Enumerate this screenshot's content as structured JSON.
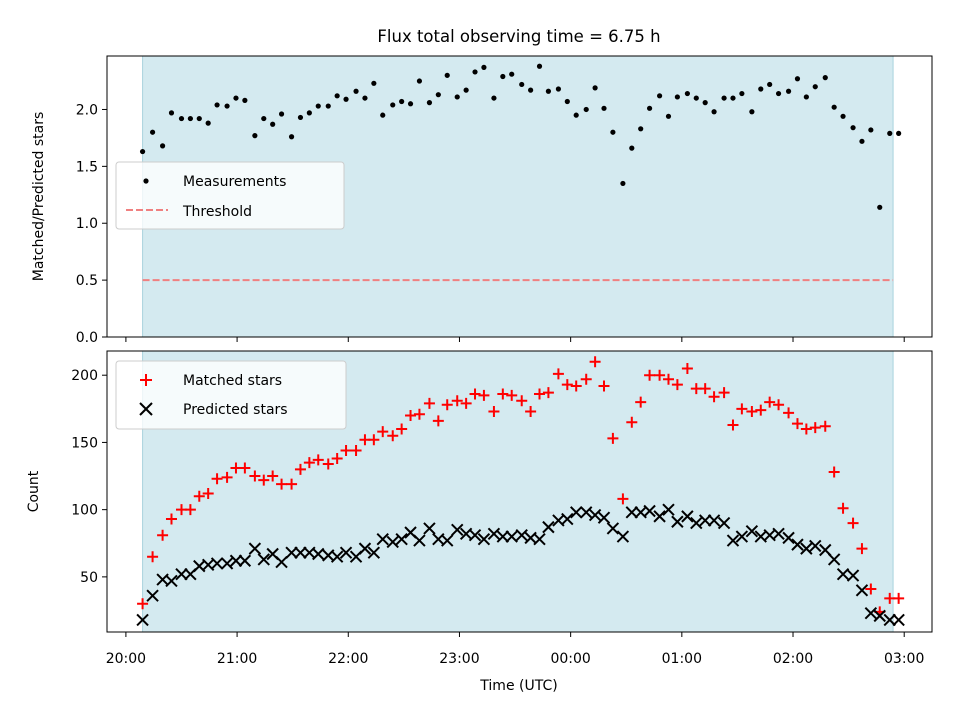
{
  "colors": {
    "band": "#d4eaf0",
    "band_edge": "#a9d3de",
    "threshold": "#f08080",
    "matched": "#ff0000",
    "predicted": "#000000",
    "measurement": "#000000"
  },
  "chart_data": {
    "title": "Flux total observing time = 6.75 h",
    "xlabel": "Time (UTC)",
    "x_unit": "hours since 20:00 UTC",
    "xlim": [
      -0.17,
      7.25
    ],
    "xticks": [
      0,
      1,
      2,
      3,
      4,
      5,
      6,
      7
    ],
    "xtick_labels": [
      "20:00",
      "21:00",
      "22:00",
      "23:00",
      "00:00",
      "01:00",
      "02:00",
      "03:00"
    ],
    "observing_window": [
      0.15,
      6.9
    ],
    "panels": [
      {
        "type": "scatter",
        "ylabel": "Matched/Predicted stars",
        "ylim": [
          0,
          2.47
        ],
        "yticks": [
          0,
          0.5,
          1.0,
          1.5,
          2.0
        ],
        "ytick_labels": [
          "0.0",
          "0.5",
          "1.0",
          "1.5",
          "2.0"
        ],
        "legend_position": "center-left",
        "series": [
          {
            "name": "Measurements",
            "marker": "dot",
            "x": [
              0.15,
              0.24,
              0.33,
              0.41,
              0.5,
              0.58,
              0.66,
              0.74,
              0.82,
              0.91,
              0.99,
              1.07,
              1.16,
              1.24,
              1.32,
              1.4,
              1.49,
              1.57,
              1.65,
              1.73,
              1.82,
              1.9,
              1.98,
              2.07,
              2.15,
              2.23,
              2.31,
              2.4,
              2.48,
              2.56,
              2.64,
              2.73,
              2.81,
              2.89,
              2.98,
              3.06,
              3.14,
              3.22,
              3.31,
              3.39,
              3.47,
              3.56,
              3.64,
              3.72,
              3.8,
              3.89,
              3.97,
              4.05,
              4.14,
              4.22,
              4.3,
              4.38,
              4.47,
              4.55,
              4.63,
              4.71,
              4.8,
              4.88,
              4.96,
              5.05,
              5.13,
              5.21,
              5.29,
              5.38,
              5.46,
              5.54,
              5.63,
              5.71,
              5.79,
              5.87,
              5.96,
              6.04,
              6.12,
              6.2,
              6.29,
              6.37,
              6.45,
              6.54,
              6.62,
              6.7,
              6.78,
              6.87,
              6.95
            ],
            "y": [
              1.63,
              1.8,
              1.68,
              1.97,
              1.92,
              1.92,
              1.92,
              1.88,
              2.04,
              2.03,
              2.1,
              2.08,
              1.77,
              1.92,
              1.87,
              1.96,
              1.76,
              1.93,
              1.97,
              2.03,
              2.03,
              2.12,
              2.09,
              2.16,
              2.1,
              2.23,
              1.95,
              2.04,
              2.07,
              2.05,
              2.25,
              2.06,
              2.13,
              2.3,
              2.11,
              2.17,
              2.33,
              2.37,
              2.1,
              2.29,
              2.31,
              2.22,
              2.17,
              2.38,
              2.16,
              2.18,
              2.07,
              1.95,
              2.0,
              2.19,
              2.01,
              1.8,
              1.35,
              1.66,
              1.83,
              2.01,
              2.12,
              1.94,
              2.11,
              2.14,
              2.1,
              2.06,
              1.98,
              2.1,
              2.1,
              2.14,
              1.98,
              2.18,
              2.22,
              2.14,
              2.16,
              2.27,
              2.11,
              2.2,
              2.28,
              2.02,
              1.94,
              1.84,
              1.72,
              1.82,
              1.14,
              1.79,
              1.79
            ]
          },
          {
            "name": "Threshold",
            "marker": "dashed-line",
            "x": [
              0.15,
              6.9
            ],
            "y": [
              0.5,
              0.5
            ]
          }
        ]
      },
      {
        "type": "scatter",
        "ylabel": "Count",
        "ylim": [
          9,
          218
        ],
        "yticks": [
          50,
          100,
          150,
          200
        ],
        "ytick_labels": [
          "50",
          "100",
          "150",
          "200"
        ],
        "legend_position": "top-left",
        "series": [
          {
            "name": "Matched stars",
            "marker": "plus",
            "x": [
              0.15,
              0.24,
              0.33,
              0.41,
              0.5,
              0.58,
              0.66,
              0.74,
              0.82,
              0.91,
              0.99,
              1.07,
              1.16,
              1.24,
              1.32,
              1.4,
              1.49,
              1.57,
              1.65,
              1.73,
              1.82,
              1.9,
              1.98,
              2.07,
              2.15,
              2.23,
              2.31,
              2.4,
              2.48,
              2.56,
              2.64,
              2.73,
              2.81,
              2.89,
              2.98,
              3.06,
              3.14,
              3.22,
              3.31,
              3.39,
              3.47,
              3.56,
              3.64,
              3.72,
              3.8,
              3.89,
              3.97,
              4.05,
              4.14,
              4.22,
              4.3,
              4.38,
              4.47,
              4.55,
              4.63,
              4.71,
              4.8,
              4.88,
              4.96,
              5.05,
              5.13,
              5.21,
              5.29,
              5.38,
              5.46,
              5.54,
              5.63,
              5.71,
              5.79,
              5.87,
              5.96,
              6.04,
              6.12,
              6.2,
              6.29,
              6.37,
              6.45,
              6.54,
              6.62,
              6.7,
              6.78,
              6.87,
              6.95
            ],
            "y": [
              30,
              65,
              81,
              93,
              100,
              100,
              110,
              112,
              123,
              124,
              131,
              131,
              125,
              122,
              125,
              119,
              119,
              130,
              135,
              137,
              134,
              138,
              144,
              144,
              152,
              152,
              158,
              155,
              160,
              170,
              171,
              179,
              166,
              178,
              181,
              179,
              186,
              185,
              173,
              186,
              185,
              181,
              173,
              186,
              187,
              201,
              193,
              192,
              197,
              210,
              192,
              153,
              108,
              165,
              180,
              200,
              200,
              197,
              193,
              205,
              190,
              190,
              184,
              187,
              163,
              175,
              173,
              174,
              180,
              178,
              172,
              164,
              160,
              161,
              162,
              128,
              101,
              90,
              71,
              41,
              24,
              34,
              34
            ]
          },
          {
            "name": "Predicted stars",
            "marker": "x",
            "x": [
              0.15,
              0.24,
              0.33,
              0.41,
              0.5,
              0.58,
              0.66,
              0.74,
              0.82,
              0.91,
              0.99,
              1.07,
              1.16,
              1.24,
              1.32,
              1.4,
              1.49,
              1.57,
              1.65,
              1.73,
              1.82,
              1.9,
              1.98,
              2.07,
              2.15,
              2.23,
              2.31,
              2.4,
              2.48,
              2.56,
              2.64,
              2.73,
              2.81,
              2.89,
              2.98,
              3.06,
              3.14,
              3.22,
              3.31,
              3.39,
              3.47,
              3.56,
              3.64,
              3.72,
              3.8,
              3.89,
              3.97,
              4.05,
              4.14,
              4.22,
              4.3,
              4.38,
              4.47,
              4.55,
              4.63,
              4.71,
              4.8,
              4.88,
              4.96,
              5.05,
              5.13,
              5.21,
              5.29,
              5.38,
              5.46,
              5.54,
              5.63,
              5.71,
              5.79,
              5.87,
              5.96,
              6.04,
              6.12,
              6.2,
              6.29,
              6.37,
              6.45,
              6.54,
              6.62,
              6.7,
              6.78,
              6.87,
              6.95
            ],
            "y": [
              18,
              36,
              48,
              47,
              52,
              52,
              58,
              59,
              60,
              60,
              62,
              62,
              71,
              63,
              67,
              61,
              68,
              68,
              68,
              67,
              66,
              65,
              68,
              65,
              71,
              68,
              78,
              76,
              78,
              83,
              77,
              86,
              78,
              77,
              85,
              82,
              81,
              78,
              82,
              80,
              80,
              81,
              79,
              78,
              87,
              92,
              93,
              98,
              98,
              96,
              94,
              86,
              80,
              98,
              98,
              99,
              95,
              100,
              91,
              95,
              90,
              92,
              92,
              90,
              77,
              80,
              84,
              80,
              81,
              82,
              79,
              74,
              71,
              73,
              70,
              63,
              52,
              51,
              40,
              23,
              21,
              18,
              18
            ]
          }
        ]
      }
    ]
  }
}
